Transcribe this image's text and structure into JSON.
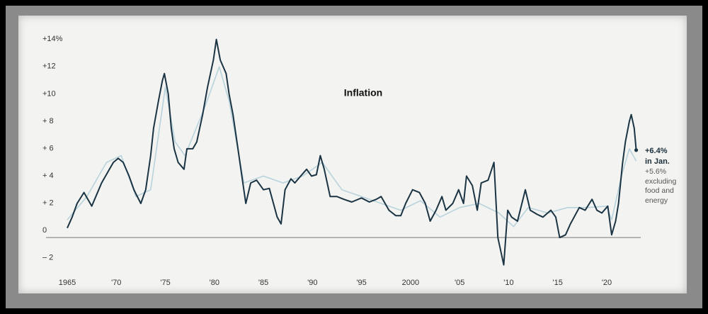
{
  "chart_data": {
    "type": "line",
    "title": "Inflation",
    "xlim": [
      1965,
      2023
    ],
    "ylim": [
      -3,
      15
    ],
    "xticks": [
      {
        "value": 1965,
        "label": "1965"
      },
      {
        "value": 1970,
        "label": "'70"
      },
      {
        "value": 1975,
        "label": "'75"
      },
      {
        "value": 1980,
        "label": "'80"
      },
      {
        "value": 1985,
        "label": "'85"
      },
      {
        "value": 1990,
        "label": "'90"
      },
      {
        "value": 1995,
        "label": "'95"
      },
      {
        "value": 2000,
        "label": "2000"
      },
      {
        "value": 2005,
        "label": "'05"
      },
      {
        "value": 2010,
        "label": "'10"
      },
      {
        "value": 2015,
        "label": "'15"
      },
      {
        "value": 2020,
        "label": "'20"
      }
    ],
    "yticks": [
      {
        "value": 14,
        "label": "+14%"
      },
      {
        "value": 12,
        "label": "+12"
      },
      {
        "value": 10,
        "label": "+10"
      },
      {
        "value": 8,
        "label": "+ 8"
      },
      {
        "value": 6,
        "label": "+ 6"
      },
      {
        "value": 4,
        "label": "+ 4"
      },
      {
        "value": 2,
        "label": "+ 2"
      },
      0,
      {
        "value": -2,
        "label": "– 2"
      }
    ],
    "series": [
      {
        "color": "#b9d3dc",
        "x": [
          1965,
          1967,
          1969,
          1970.5,
          1972,
          1973.5,
          1975,
          1976,
          1977,
          1979,
          1980.5,
          1981.5,
          1983,
          1985,
          1987,
          1989,
          1991,
          1993,
          1995,
          1997,
          1999,
          2001,
          2003,
          2005,
          2007,
          2009,
          2010.5,
          2012,
          2014,
          2016,
          2018,
          2020,
          2020.5,
          2021.5,
          2022.3,
          2023
        ],
        "values": [
          1.3,
          3,
          5.5,
          6,
          3,
          3.5,
          11,
          7,
          6,
          9.5,
          12.5,
          10,
          4,
          4.5,
          4,
          4.5,
          5.5,
          3.5,
          3,
          2.5,
          2,
          2.7,
          1.5,
          2.2,
          2.5,
          1.8,
          0.8,
          2.2,
          1.8,
          2.2,
          2.2,
          2.3,
          1.3,
          4.5,
          6.5,
          5.6
        ]
      },
      {
        "color": "#1b3444",
        "x": [
          1965,
          1965.5,
          1966,
          1966.7,
          1967.5,
          1968.5,
          1969.7,
          1970.2,
          1970.7,
          1971.3,
          1971.8,
          1972,
          1972.5,
          1973,
          1973.5,
          1973.8,
          1974.3,
          1974.7,
          1974.9,
          1975.3,
          1975.6,
          1975.9,
          1976.3,
          1976.9,
          1977.2,
          1977.8,
          1978.2,
          1978.8,
          1979.3,
          1979.9,
          1980.2,
          1980.6,
          1981.2,
          1981.5,
          1981.9,
          1982.4,
          1982.9,
          1983.2,
          1983.7,
          1984.3,
          1985,
          1985.6,
          1986.4,
          1986.8,
          1987.2,
          1987.8,
          1988.2,
          1988.8,
          1989.4,
          1989.9,
          1990.4,
          1990.8,
          1991.2,
          1991.8,
          1992.5,
          1993.2,
          1994,
          1995,
          1995.8,
          1996.5,
          1997,
          1997.8,
          1998.5,
          1999,
          1999.5,
          2000.2,
          2000.9,
          2001.5,
          2002,
          2002.6,
          2003.2,
          2003.6,
          2004.3,
          2004.9,
          2005.4,
          2005.7,
          2006.3,
          2006.8,
          2007.2,
          2007.9,
          2008.5,
          2008.9,
          2009.5,
          2009.9,
          2010.3,
          2010.9,
          2011.7,
          2012.2,
          2012.9,
          2013.5,
          2014.3,
          2014.8,
          2015.2,
          2015.8,
          2016.3,
          2017.2,
          2017.8,
          2018.5,
          2019,
          2019.5,
          2020.1,
          2020.5,
          2020.9,
          2021.2,
          2021.6,
          2021.9,
          2022.3,
          2022.5,
          2022.8,
          2023
        ],
        "values": [
          0.7,
          1.5,
          2.5,
          3.3,
          2.3,
          4,
          5.5,
          5.8,
          5.5,
          4.5,
          3.5,
          3.2,
          2.5,
          3.5,
          6,
          8,
          10,
          11.5,
          12,
          10.5,
          8,
          6.5,
          5.5,
          5,
          6.5,
          6.5,
          7,
          9,
          11,
          13,
          14.5,
          13,
          12,
          10.5,
          9,
          6.5,
          4,
          2.5,
          4,
          4.2,
          3.5,
          3.6,
          1.5,
          1,
          3.5,
          4.3,
          4,
          4.5,
          5,
          4.5,
          4.6,
          6,
          5,
          3,
          3,
          2.8,
          2.6,
          2.9,
          2.6,
          2.8,
          3,
          2,
          1.6,
          1.6,
          2.5,
          3.5,
          3.3,
          2.5,
          1.2,
          2,
          3,
          2,
          2.5,
          3.5,
          2.5,
          4.5,
          3.8,
          2,
          4,
          4.2,
          5.5,
          0,
          -2,
          2,
          1.5,
          1.2,
          3.5,
          2,
          1.7,
          1.5,
          2,
          1.5,
          0,
          0.2,
          1,
          2.2,
          2,
          2.8,
          2,
          1.8,
          2.3,
          0.2,
          1.2,
          2.5,
          5.4,
          7,
          8.5,
          9,
          8,
          6.4
        ]
      }
    ],
    "annotations": [
      "+6.4%",
      "in Jan.",
      "+5.6%",
      "excluding",
      "food and",
      "energy"
    ]
  }
}
